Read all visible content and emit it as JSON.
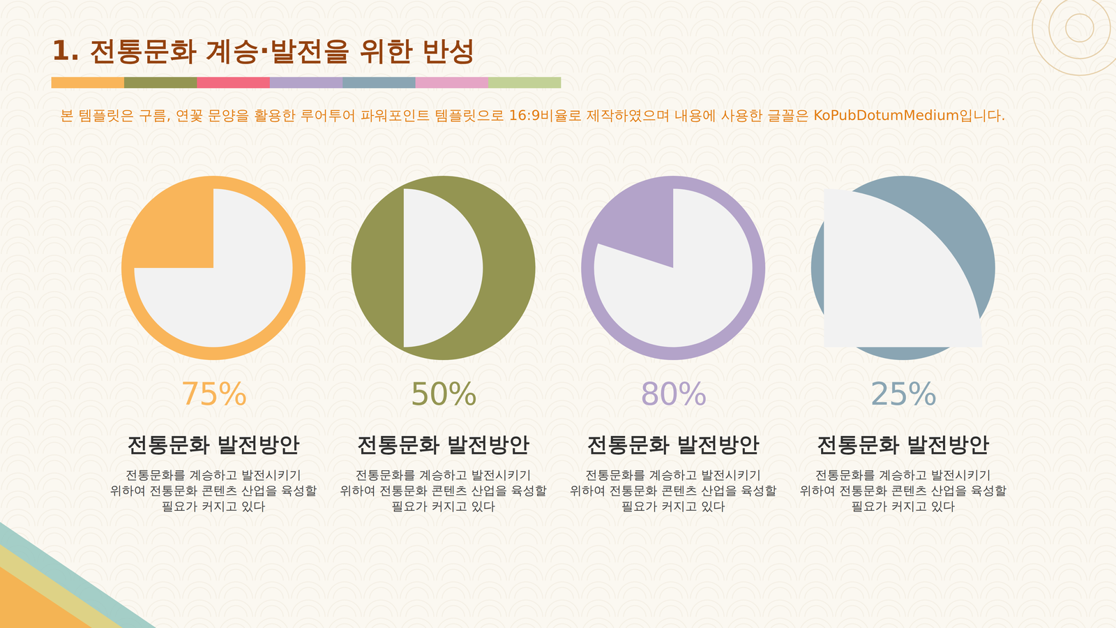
{
  "title": "1. 전통문화 계승·발전을 위한 반성",
  "subtitle": "본 템플릿은 구름, 연꽃 문양을 활용한 루어투어 파워포인트 템플릿으로 16:9비율로 제작하였으며 내용에 사용한 글꼴은 KoPubDotumMedium입니다.",
  "chart_data": [
    {
      "type": "pie",
      "values": [
        75
      ],
      "value_labels": [
        "75%"
      ],
      "color": "#f9b55a",
      "title": "전통문화 발전방안",
      "text": [
        "전통문화를 계승하고 발전시키기",
        "위하여 전통문화 콘텐츠 산업을 육성할",
        "필요가 커지고 있다"
      ]
    },
    {
      "type": "pie",
      "values": [
        50
      ],
      "value_labels": [
        "50%"
      ],
      "color": "#949552",
      "title": "전통문화 발전방안",
      "text": [
        "전통문화를 계승하고 발전시키기",
        "위하여 전통문화 콘텐츠 산업을 육성할",
        "필요가 커지고 있다"
      ]
    },
    {
      "type": "pie",
      "values": [
        80
      ],
      "value_labels": [
        "80%"
      ],
      "color": "#b3a3c9",
      "title": "전통문화 발전방안",
      "text": [
        "전통문화를 계승하고 발전시키기",
        "위하여 전통문화 콘텐츠 산업을 육성할",
        "필요가 커지고 있다"
      ]
    },
    {
      "type": "pie",
      "values": [
        25
      ],
      "value_labels": [
        "25%"
      ],
      "color": "#8aa5b3",
      "title": "전통문화 발전방안",
      "text": [
        "전통문화를 계승하고 발전시키기",
        "위하여 전통문화 콘텐츠 산업을 육성할",
        "필요가 커지고 있다"
      ]
    }
  ]
}
